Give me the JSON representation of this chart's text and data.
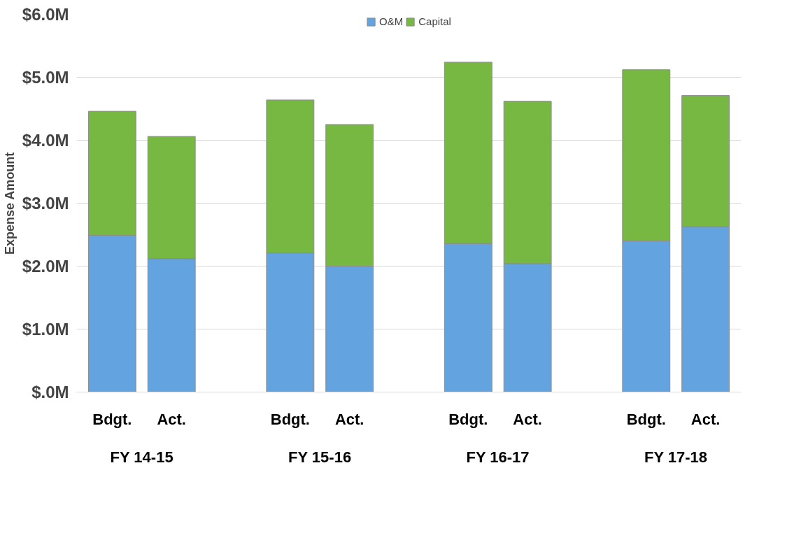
{
  "chart_data": {
    "type": "bar",
    "stacked": true,
    "ylabel": "Expense Amount",
    "categories": [
      "Bdgt.",
      "Act.",
      "Bdgt.",
      "Act.",
      "Bdgt.",
      "Act.",
      "Bdgt.",
      "Act."
    ],
    "annotations": [
      "FY 14-15",
      "FY 15-16",
      "FY 16-17",
      "FY 17-18"
    ],
    "series": [
      {
        "name": "O&M",
        "color": "#62a3e0",
        "values": [
          2.49,
          2.12,
          2.21,
          2.0,
          2.36,
          2.04,
          2.4,
          2.63
        ]
      },
      {
        "name": "Capital",
        "color": "#77b843",
        "values": [
          1.97,
          1.94,
          2.43,
          2.25,
          2.88,
          2.58,
          2.72,
          2.08
        ]
      }
    ],
    "ylim": [
      0,
      6
    ],
    "yticks": [
      {
        "value": 0,
        "label": "$.0M"
      },
      {
        "value": 1,
        "label": "$1.0M"
      },
      {
        "value": 2,
        "label": "$2.0M"
      },
      {
        "value": 3,
        "label": "$3.0M"
      },
      {
        "value": 4,
        "label": "$4.0M"
      },
      {
        "value": 5,
        "label": "$5.0M"
      },
      {
        "value": 6,
        "label": "$6.0M"
      }
    ],
    "grid": "y",
    "legend": "top"
  }
}
